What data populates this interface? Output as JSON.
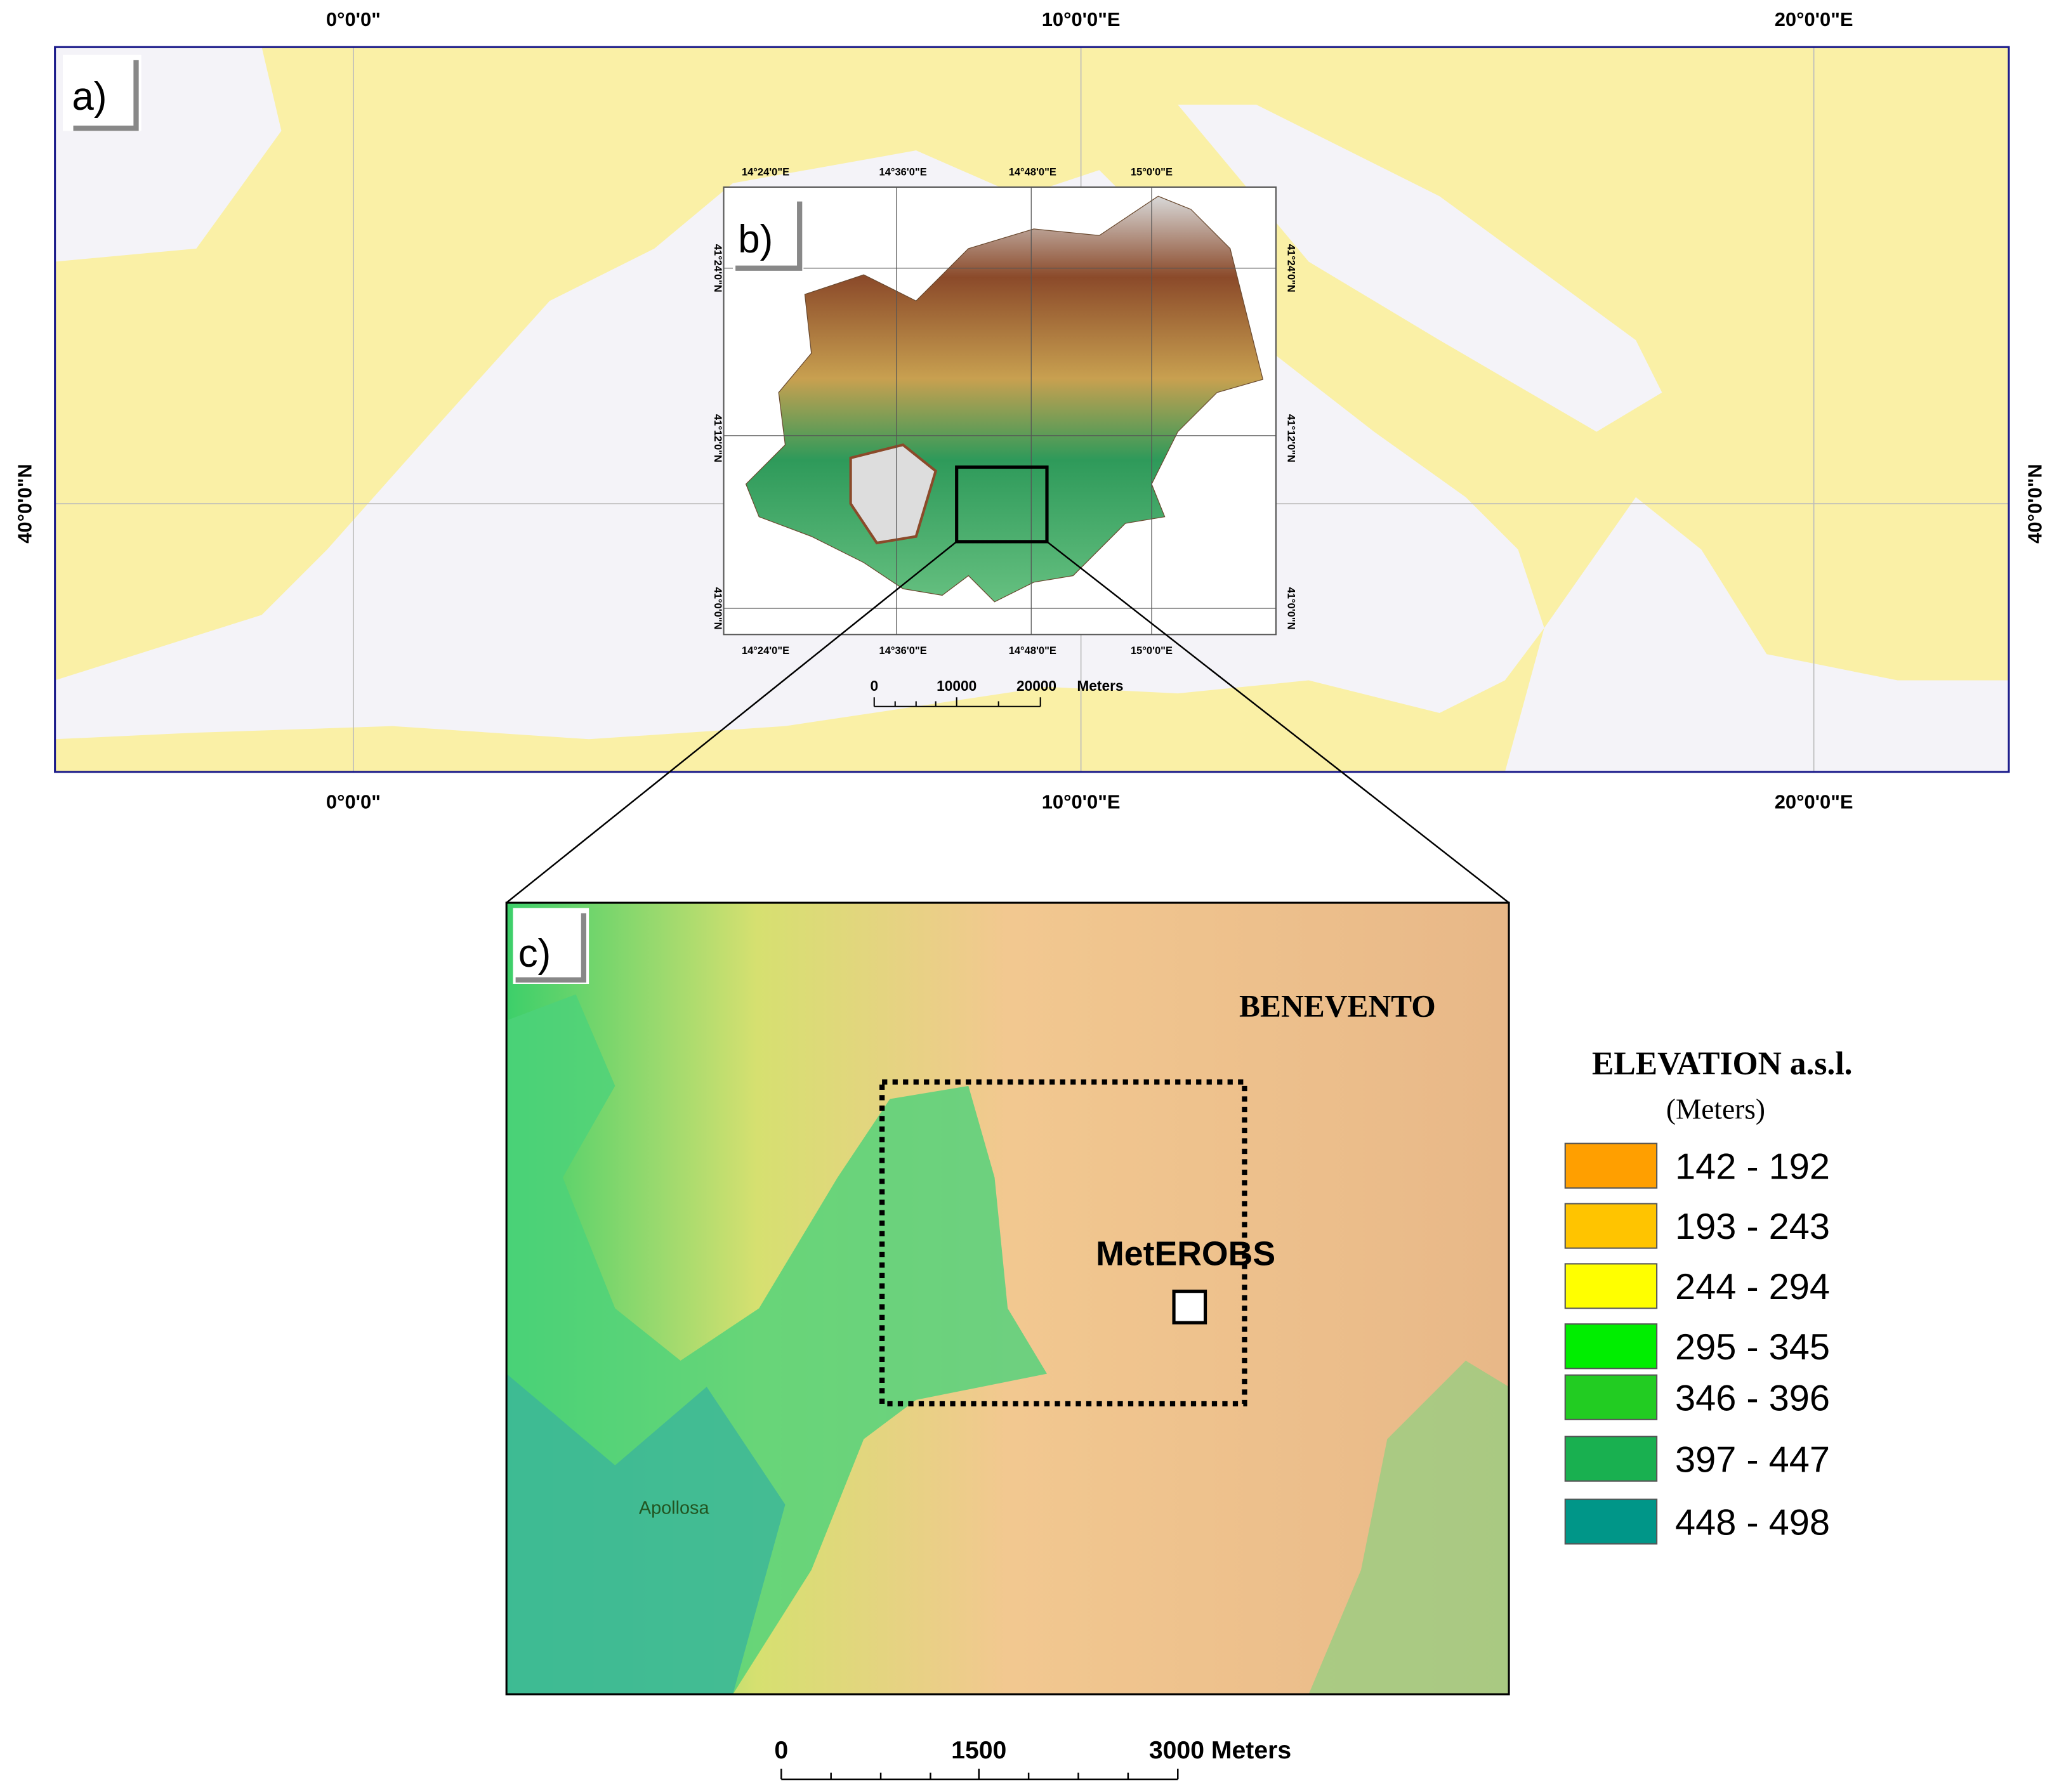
{
  "panel_a": {
    "label": "a)",
    "top_labels": [
      "0°0'0\"",
      "10°0'0\"E",
      "20°0'0\"E"
    ],
    "bottom_labels": [
      "0°0'0\"",
      "10°0'0\"E",
      "20°0'0\"E"
    ],
    "left_label": "40°0'0\"N",
    "right_label": "40°0'0\"N"
  },
  "panel_b": {
    "label": "b)",
    "top_labels": [
      "14°24'0\"E",
      "14°36'0\"E",
      "14°48'0\"E",
      "15°0'0\"E"
    ],
    "bottom_labels": [
      "14°24'0\"E",
      "14°36'0\"E",
      "14°48'0\"E",
      "15°0'0\"E"
    ],
    "left_labels": [
      "41°24'0\"N",
      "41°12'0\"N",
      "41°0'0\"N"
    ],
    "right_labels": [
      "41°24'0\"N",
      "41°12'0\"N",
      "41°0'0\"N"
    ],
    "scale_bar": [
      "0",
      "10000",
      "20000",
      "Meters"
    ]
  },
  "panel_c": {
    "label": "c)",
    "places": [
      "BENEVENTO",
      "MetEROBS",
      "Apollosa"
    ],
    "scale_bar": [
      "0",
      "1500",
      "3000 Meters"
    ]
  },
  "legend": {
    "title": "ELEVATION a.s.l.",
    "subtitle": "(Meters)",
    "items": [
      {
        "label": "142 - 192",
        "color": "#ff9f00"
      },
      {
        "label": "193 - 243",
        "color": "#ffc400"
      },
      {
        "label": "244 - 294",
        "color": "#ffff00"
      },
      {
        "label": "295 - 345",
        "color": "#00ee00"
      },
      {
        "label": "346 - 396",
        "color": "#22cc22"
      },
      {
        "label": "397 - 447",
        "color": "#19b050"
      },
      {
        "label": "448 - 498",
        "color": "#009688"
      }
    ]
  }
}
